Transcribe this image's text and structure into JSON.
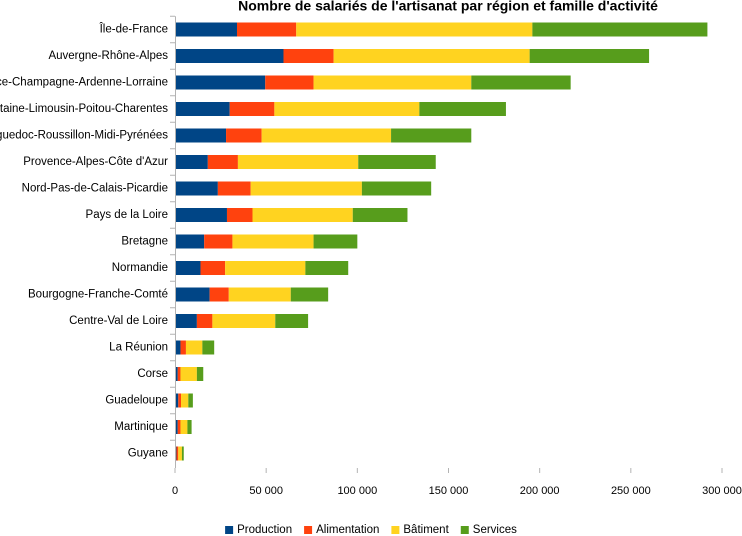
{
  "chart_data": {
    "type": "bar",
    "orientation": "horizontal",
    "stacked": true,
    "title": "Nombre de salariés de l'artisanat par région et famille d'activité",
    "xlabel": "",
    "ylabel": "",
    "xlim": [
      0,
      300000
    ],
    "x_ticks": [
      0,
      50000,
      100000,
      150000,
      200000,
      250000,
      300000
    ],
    "x_tick_labels": [
      "0",
      "50 000",
      "100 000",
      "150 000",
      "200 000",
      "250 000",
      "300 000"
    ],
    "grid": false,
    "legend_position": "bottom",
    "categories": [
      "Île-de-France",
      "Auvergne-Rhône-Alpes",
      "Alsace-Champagne-Ardenne-Lorraine",
      "Aquitaine-Limousin-Poitou-Charentes",
      "Languedoc-Roussillon-Midi-Pyrénées",
      "Provence-Alpes-Côte d'Azur",
      "Nord-Pas-de-Calais-Picardie",
      "Pays de la Loire",
      "Bretagne",
      "Normandie",
      "Bourgogne-Franche-Comté",
      "Centre-Val de Loire",
      "La Réunion",
      "Corse",
      "Guadeloupe",
      "Martinique",
      "Guyane"
    ],
    "series": [
      {
        "name": "Production",
        "color": "#004586",
        "values": [
          34000,
          59500,
          49500,
          30000,
          28000,
          18000,
          23500,
          28500,
          16000,
          14000,
          19000,
          12000,
          3000,
          1500,
          1800,
          1500,
          800
        ]
      },
      {
        "name": "Alimentation",
        "color": "#ff420e",
        "values": [
          32500,
          27500,
          26500,
          24500,
          19500,
          16500,
          18000,
          14000,
          15500,
          13500,
          10500,
          8500,
          3000,
          1500,
          1500,
          1500,
          1000
        ]
      },
      {
        "name": "Bâtiment",
        "color": "#ffd320",
        "values": [
          129500,
          107500,
          86500,
          79500,
          71000,
          66000,
          61000,
          55000,
          44500,
          44000,
          34000,
          34500,
          9000,
          9000,
          4000,
          3800,
          2000
        ]
      },
      {
        "name": "Services",
        "color": "#579d1c",
        "values": [
          96000,
          65500,
          54500,
          47500,
          44000,
          42500,
          38000,
          30000,
          24000,
          23500,
          20500,
          18000,
          6500,
          3500,
          2500,
          2300,
          1000
        ]
      }
    ]
  }
}
